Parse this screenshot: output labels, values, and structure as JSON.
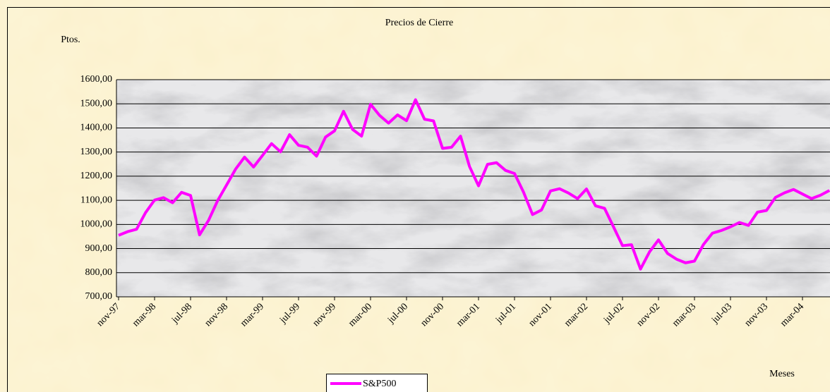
{
  "chart_data": {
    "type": "line",
    "title": "Precios de Cierre",
    "y_label": "Ptos.",
    "x_label": "Meses",
    "categories": [
      "nov-97",
      null,
      null,
      null,
      "mar-98",
      null,
      null,
      null,
      "jul-98",
      null,
      null,
      null,
      "nov-98",
      null,
      null,
      null,
      "mar-99",
      null,
      null,
      null,
      "jul-99",
      null,
      null,
      null,
      "nov-99",
      null,
      null,
      null,
      "mar-00",
      null,
      null,
      null,
      "jul-00",
      null,
      null,
      null,
      "nov-00",
      null,
      null,
      null,
      "mar-01",
      null,
      null,
      null,
      "jul-01",
      null,
      null,
      null,
      "nov-01",
      null,
      null,
      null,
      "mar-02",
      null,
      null,
      null,
      "jul-02",
      null,
      null,
      null,
      "nov-02",
      null,
      null,
      null,
      "mar-03",
      null,
      null,
      null,
      "jul-03",
      null,
      null,
      null,
      "nov-03",
      null,
      null,
      null,
      "mar-04",
      null,
      null,
      null
    ],
    "series": [
      {
        "name": "S&P500",
        "color": "#ff00ff",
        "values": [
          955,
          970,
          980,
          1049,
          1101,
          1111,
          1090,
          1133,
          1120,
          957,
          1017,
          1098,
          1163,
          1229,
          1279,
          1238,
          1286,
          1335,
          1301,
          1372,
          1328,
          1320,
          1283,
          1362,
          1388,
          1469,
          1394,
          1366,
          1498,
          1452,
          1420,
          1454,
          1430,
          1517,
          1436,
          1429,
          1315,
          1320,
          1366,
          1240,
          1160,
          1249,
          1256,
          1224,
          1211,
          1134,
          1041,
          1060,
          1139,
          1148,
          1130,
          1107,
          1147,
          1077,
          1067,
          990,
          912,
          916,
          815,
          886,
          936,
          880,
          856,
          841,
          848,
          917,
          964,
          975,
          990,
          1008,
          996,
          1051,
          1058,
          1112,
          1131,
          1145,
          1126,
          1107,
          1121,
          1141
        ]
      }
    ],
    "ylim": [
      700,
      1600
    ],
    "yticks": [
      {
        "value": 700,
        "label": "700,00"
      },
      {
        "value": 800,
        "label": "800,00"
      },
      {
        "value": 900,
        "label": "900,00"
      },
      {
        "value": 1000,
        "label": "1000,00"
      },
      {
        "value": 1100,
        "label": "1100,00"
      },
      {
        "value": 1200,
        "label": "1200,00"
      },
      {
        "value": 1300,
        "label": "1300,00"
      },
      {
        "value": 1400,
        "label": "1400,00"
      },
      {
        "value": 1500,
        "label": "1500,00"
      },
      {
        "value": 1600,
        "label": "1600,00"
      }
    ],
    "grid": true,
    "legend": "bottom"
  }
}
